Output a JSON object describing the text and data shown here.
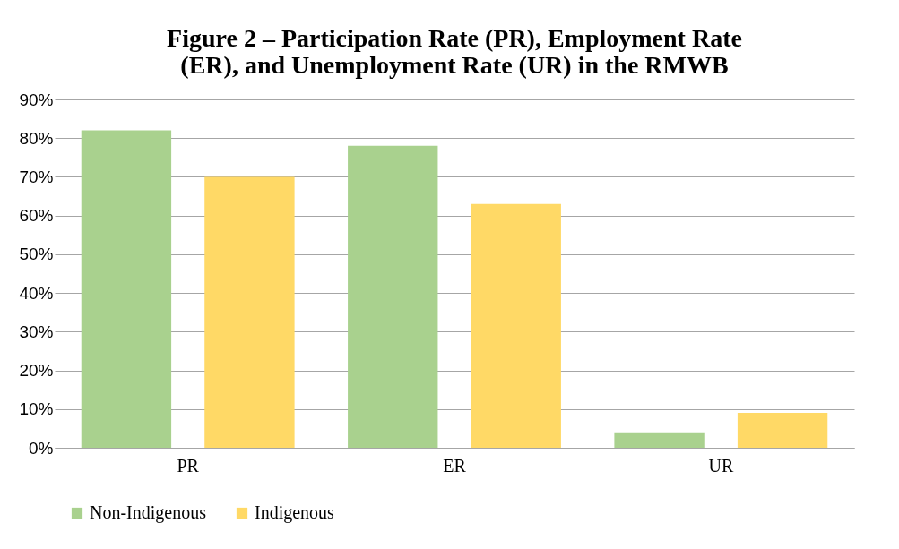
{
  "chart_data": {
    "type": "bar",
    "title": [
      "Figure 2 – Participation Rate (PR), Employment Rate",
      "(ER), and Unemployment Rate (UR) in the RMWB"
    ],
    "categories": [
      "PR",
      "ER",
      "UR"
    ],
    "series": [
      {
        "name": "Non-Indigenous",
        "color": "#a9d18e",
        "values": [
          82,
          78,
          4
        ]
      },
      {
        "name": "Indigenous",
        "color": "#ffd966",
        "values": [
          70,
          63,
          9
        ]
      }
    ],
    "ylim": [
      0,
      90
    ],
    "yticks": [
      {
        "value": 0,
        "label": "0%"
      },
      {
        "value": 10,
        "label": "10%"
      },
      {
        "value": 20,
        "label": "20%"
      },
      {
        "value": 30,
        "label": "30%"
      },
      {
        "value": 40,
        "label": "40%"
      },
      {
        "value": 50,
        "label": "50%"
      },
      {
        "value": 60,
        "label": "60%"
      },
      {
        "value": 70,
        "label": "70%"
      },
      {
        "value": 80,
        "label": "80%"
      },
      {
        "value": 90,
        "label": "90%"
      }
    ],
    "grid": "y",
    "legend": "bottom"
  }
}
